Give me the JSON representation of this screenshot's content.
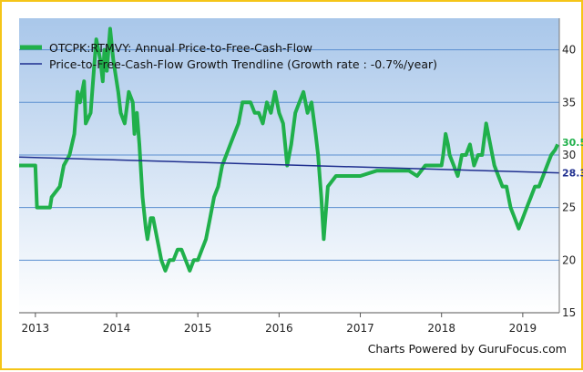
{
  "footer": "Charts Powered by GuruFocus.com",
  "chart_data": {
    "type": "line",
    "title": "",
    "xlabel": "",
    "ylabel": "",
    "xlim": [
      2012.8,
      2019.45
    ],
    "ylim": [
      15,
      43
    ],
    "x_ticks": [
      2013,
      2014,
      2015,
      2016,
      2017,
      2018,
      2019
    ],
    "x_tick_labels": [
      "2013",
      "2014",
      "2015",
      "2016",
      "2017",
      "2018",
      "2019"
    ],
    "y_ticks": [
      15,
      20,
      25,
      30,
      35,
      40
    ],
    "y_tick_labels": [
      "15",
      "20",
      "25",
      "30",
      "35",
      "40"
    ],
    "grid": "horizontal",
    "legend_position": "top-left",
    "plot_background": [
      "#a9c7ea",
      "#ffffff"
    ],
    "series": [
      {
        "name": "OTCPK:RTMVY: Annual Price-to-Free-Cash-Flow",
        "color": "#20b04b",
        "end_label": "30.5",
        "x": [
          2012.8,
          2013.0,
          2013.02,
          2013.18,
          2013.2,
          2013.3,
          2013.35,
          2013.42,
          2013.48,
          2013.52,
          2013.55,
          2013.6,
          2013.62,
          2013.68,
          2013.72,
          2013.75,
          2013.8,
          2013.83,
          2013.85,
          2013.88,
          2013.92,
          2013.96,
          2014.0,
          2014.02,
          2014.05,
          2014.1,
          2014.15,
          2014.2,
          2014.22,
          2014.25,
          2014.28,
          2014.32,
          2014.36,
          2014.38,
          2014.4,
          2014.42,
          2014.45,
          2014.5,
          2014.55,
          2014.6,
          2014.65,
          2014.7,
          2014.75,
          2014.8,
          2014.85,
          2014.9,
          2014.95,
          2015.0,
          2015.05,
          2015.1,
          2015.15,
          2015.2,
          2015.25,
          2015.3,
          2015.35,
          2015.4,
          2015.45,
          2015.5,
          2015.55,
          2015.6,
          2015.65,
          2015.7,
          2015.75,
          2015.8,
          2015.85,
          2015.9,
          2015.95,
          2016.0,
          2016.05,
          2016.1,
          2016.15,
          2016.2,
          2016.25,
          2016.3,
          2016.35,
          2016.4,
          2016.45,
          2016.48,
          2016.5,
          2016.52,
          2016.55,
          2016.6,
          2016.7,
          2016.8,
          2016.9,
          2017.0,
          2017.2,
          2017.4,
          2017.6,
          2017.7,
          2017.8,
          2017.9,
          2018.0,
          2018.02,
          2018.05,
          2018.08,
          2018.1,
          2018.15,
          2018.2,
          2018.25,
          2018.3,
          2018.35,
          2018.4,
          2018.45,
          2018.5,
          2018.55,
          2018.6,
          2018.65,
          2018.7,
          2018.75,
          2018.8,
          2018.85,
          2018.9,
          2018.95,
          2019.0,
          2019.05,
          2019.1,
          2019.15,
          2019.2,
          2019.25,
          2019.3,
          2019.35,
          2019.4,
          2019.43
        ],
        "y": [
          29,
          29,
          25,
          25,
          26,
          27,
          29,
          30,
          32,
          36,
          35,
          37,
          33,
          34,
          38,
          41,
          39,
          37,
          40,
          38,
          42,
          39,
          37,
          36,
          34,
          33,
          36,
          35,
          32,
          34,
          31,
          26,
          23,
          22,
          23,
          24,
          24,
          22,
          20,
          19,
          20,
          20,
          21,
          21,
          20,
          19,
          20,
          20,
          21,
          22,
          24,
          26,
          27,
          29,
          30,
          31,
          32,
          33,
          35,
          35,
          35,
          34,
          34,
          33,
          35,
          34,
          36,
          34,
          33,
          29,
          31,
          34,
          35,
          36,
          34,
          35,
          32,
          30,
          28,
          26,
          22,
          27,
          28,
          28,
          28,
          28,
          28.5,
          28.5,
          28.5,
          28,
          29,
          29,
          29,
          30,
          32,
          31,
          30,
          29,
          28,
          30,
          30,
          31,
          29,
          30,
          30,
          33,
          31,
          29,
          28,
          27,
          27,
          25,
          24,
          23,
          24,
          25,
          26,
          27,
          27,
          28,
          29,
          30,
          30.5,
          31
        ]
      },
      {
        "name": "Price-to-Free-Cash-Flow Growth Trendline (Growth rate : -0.7%/year)",
        "color": "#1f2f8f",
        "end_label": "28.3",
        "x": [
          2012.8,
          2019.45
        ],
        "y": [
          29.8,
          28.3
        ]
      }
    ]
  }
}
